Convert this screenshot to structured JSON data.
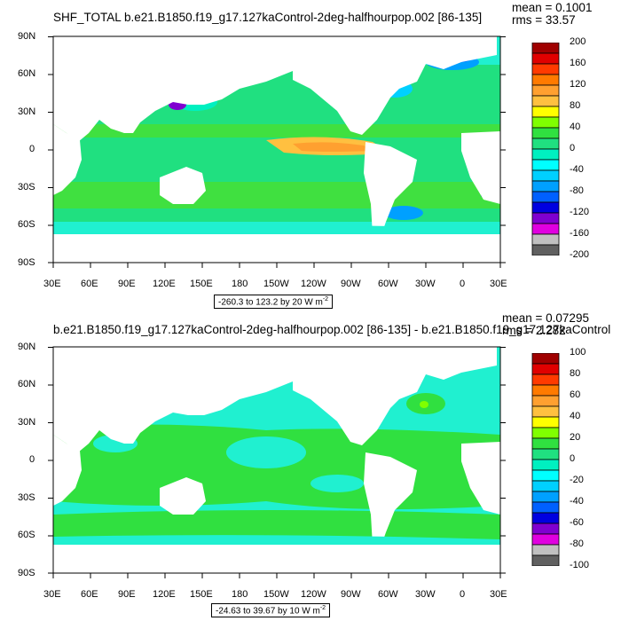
{
  "panels": [
    {
      "title": "SHF_TOTAL b.e21.B1850.f19_g17.127kaControl-2deg-halfhourpop.002 [86-135]",
      "mean": "mean = 0.1001",
      "rms": "rms = 33.57",
      "lat_labels": [
        "90N",
        "60N",
        "30N",
        "0",
        "30S",
        "60S",
        "90S"
      ],
      "lon_labels": [
        "30E",
        "60E",
        "90E",
        "120E",
        "150E",
        "180",
        "150W",
        "120W",
        "90W",
        "60W",
        "30W",
        "0",
        "30E"
      ],
      "range": "-260.3 to 123.2 by 20  W m",
      "range_exp": "-2",
      "colorbar_labels": [
        "200",
        "160",
        "120",
        "80",
        "40",
        "0",
        "-40",
        "-80",
        "-120",
        "-160",
        "-200"
      ]
    },
    {
      "title": "b.e21.B1850.f19_g17.127kaControl-2deg-halfhourpop.002 [86-135] - b.e21.B1850.f19_g17.127kaControl",
      "mean": "mean = 0.07295",
      "rms": "rms = 2.282",
      "lat_labels": [
        "90N",
        "60N",
        "30N",
        "0",
        "30S",
        "60S",
        "90S"
      ],
      "lon_labels": [
        "30E",
        "60E",
        "90E",
        "120E",
        "150E",
        "180",
        "150W",
        "120W",
        "90W",
        "60W",
        "30W",
        "0",
        "30E"
      ],
      "range": "-24.63 to 39.67 by 10  W m",
      "range_exp": "-2",
      "colorbar_labels": [
        "100",
        "80",
        "60",
        "40",
        "20",
        "0",
        "-20",
        "-40",
        "-60",
        "-80",
        "-100"
      ]
    }
  ],
  "colorbar_colors": [
    "#a00000",
    "#e00000",
    "#ff3a00",
    "#ff7a00",
    "#ffa030",
    "#ffc040",
    "#ffff00",
    "#80ff00",
    "#30e040",
    "#20e080",
    "#00f0c0",
    "#00ffff",
    "#00d0ff",
    "#00a0ff",
    "#0060ff",
    "#0000e0",
    "#8000d0",
    "#e000e0",
    "#c0c0c0",
    "#606060"
  ],
  "colors": {
    "land": "#ffffff",
    "ocean_base": "#20e080",
    "ocean_cyan": "#20f0d0",
    "ocean_green": "#40e040"
  }
}
